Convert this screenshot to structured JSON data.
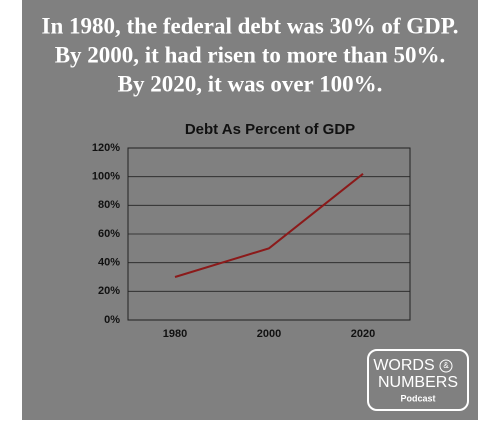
{
  "headline": [
    "In 1980, the federal debt was 30% of GDP.",
    "By 2000, it had risen to more than 50%.",
    "By 2020, it was over 100%."
  ],
  "logo": {
    "line1": "WORDS",
    "amp": "&",
    "line2": "NUMBERS",
    "sub": "Podcast"
  },
  "chart_data": {
    "type": "line",
    "title": "Debt As Percent of GDP",
    "categories": [
      "1980",
      "2000",
      "2020"
    ],
    "series": [
      {
        "name": "Debt",
        "color": "#8b1a1a",
        "values": [
          30,
          50,
          102
        ]
      }
    ],
    "ylim": [
      0,
      120
    ],
    "yticks": [
      {
        "value": 0,
        "label": "0%"
      },
      {
        "value": 20,
        "label": "20%"
      },
      {
        "value": 40,
        "label": "40%"
      },
      {
        "value": 60,
        "label": "60%"
      },
      {
        "value": 80,
        "label": "80%"
      },
      {
        "value": 100,
        "label": "100%"
      },
      {
        "value": 120,
        "label": "120%"
      }
    ],
    "grid": true
  }
}
